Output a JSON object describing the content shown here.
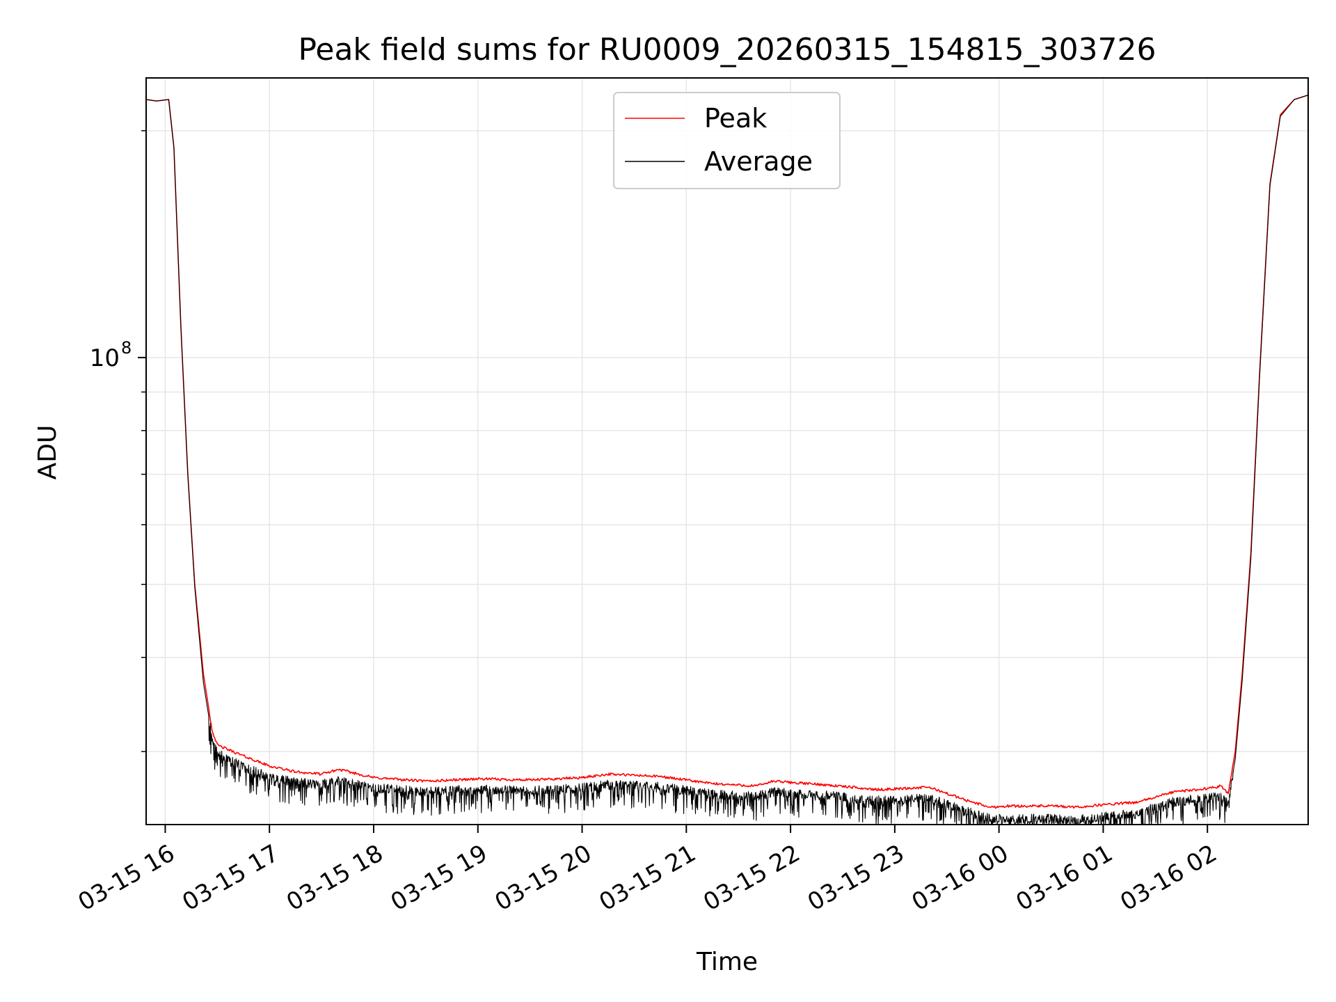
{
  "chart_data": {
    "type": "line",
    "title": "Peak field sums for RU0009_20260315_154815_303726",
    "xlabel": "Time",
    "ylabel": "ADU",
    "y_scale": "log",
    "ylim": [
      24000000,
      235000000
    ],
    "y_major_tick": {
      "value": 100000000,
      "label_base": "10",
      "label_exp": "8"
    },
    "y_minor_ticks": [
      30000000,
      40000000,
      50000000,
      60000000,
      70000000,
      80000000,
      90000000,
      200000000
    ],
    "xlim": [
      "2026-03-15 15:49",
      "2026-03-16 02:58"
    ],
    "x_ticks": [
      {
        "t": "2026-03-15 16:00",
        "label": "03-15 16"
      },
      {
        "t": "2026-03-15 17:00",
        "label": "03-15 17"
      },
      {
        "t": "2026-03-15 18:00",
        "label": "03-15 18"
      },
      {
        "t": "2026-03-15 19:00",
        "label": "03-15 19"
      },
      {
        "t": "2026-03-15 20:00",
        "label": "03-15 20"
      },
      {
        "t": "2026-03-15 21:00",
        "label": "03-15 21"
      },
      {
        "t": "2026-03-15 22:00",
        "label": "03-15 22"
      },
      {
        "t": "2026-03-15 23:00",
        "label": "03-15 23"
      },
      {
        "t": "2026-03-16 00:00",
        "label": "03-16 00"
      },
      {
        "t": "2026-03-16 01:00",
        "label": "03-16 01"
      },
      {
        "t": "2026-03-16 02:00",
        "label": "03-16 02"
      }
    ],
    "grid": true,
    "legend": {
      "placement": "upper center"
    },
    "series": [
      {
        "name": "Peak",
        "color": "#ff0000",
        "points": [
          [
            "2026-03-15 15:49",
            220000000
          ],
          [
            "2026-03-15 15:55",
            219000000
          ],
          [
            "2026-03-15 16:02",
            220000000
          ],
          [
            "2026-03-15 16:05",
            190000000
          ],
          [
            "2026-03-15 16:09",
            110000000
          ],
          [
            "2026-03-15 16:13",
            70000000
          ],
          [
            "2026-03-15 16:17",
            50000000
          ],
          [
            "2026-03-15 16:22",
            38000000
          ],
          [
            "2026-03-15 16:27",
            32000000
          ],
          [
            "2026-03-15 16:30",
            30600000
          ],
          [
            "2026-03-15 16:45",
            29600000
          ],
          [
            "2026-03-15 17:00",
            28700000
          ],
          [
            "2026-03-15 17:15",
            28200000
          ],
          [
            "2026-03-15 17:30",
            28000000
          ],
          [
            "2026-03-15 17:40",
            28400000
          ],
          [
            "2026-03-15 18:00",
            27700000
          ],
          [
            "2026-03-15 18:30",
            27400000
          ],
          [
            "2026-03-15 19:00",
            27600000
          ],
          [
            "2026-03-15 19:30",
            27500000
          ],
          [
            "2026-03-15 20:00",
            27700000
          ],
          [
            "2026-03-15 20:15",
            28000000
          ],
          [
            "2026-03-15 20:45",
            27800000
          ],
          [
            "2026-03-15 21:15",
            27200000
          ],
          [
            "2026-03-15 21:40",
            27000000
          ],
          [
            "2026-03-15 21:50",
            27400000
          ],
          [
            "2026-03-15 22:20",
            27100000
          ],
          [
            "2026-03-15 22:50",
            26700000
          ],
          [
            "2026-03-15 23:20",
            26900000
          ],
          [
            "2026-03-15 23:40",
            25900000
          ],
          [
            "2026-03-15 23:55",
            25300000
          ],
          [
            "2026-03-16 00:05",
            25400000
          ],
          [
            "2026-03-16 00:30",
            25400000
          ],
          [
            "2026-03-16 00:45",
            25300000
          ],
          [
            "2026-03-16 01:00",
            25500000
          ],
          [
            "2026-03-16 01:20",
            25700000
          ],
          [
            "2026-03-16 01:40",
            26500000
          ],
          [
            "2026-03-16 02:00",
            26800000
          ],
          [
            "2026-03-16 02:08",
            27000000
          ],
          [
            "2026-03-16 02:12",
            26400000
          ],
          [
            "2026-03-16 02:16",
            30000000
          ],
          [
            "2026-03-16 02:20",
            38000000
          ],
          [
            "2026-03-16 02:25",
            55000000
          ],
          [
            "2026-03-16 02:30",
            95000000
          ],
          [
            "2026-03-16 02:36",
            170000000
          ],
          [
            "2026-03-16 02:42",
            210000000
          ],
          [
            "2026-03-16 02:50",
            220000000
          ],
          [
            "2026-03-16 02:58",
            223000000
          ]
        ]
      },
      {
        "name": "Average",
        "color": "#000000",
        "points": [
          [
            "2026-03-15 15:49",
            220000000
          ],
          [
            "2026-03-15 15:55",
            219000000
          ],
          [
            "2026-03-15 16:02",
            220000000
          ],
          [
            "2026-03-15 16:05",
            190000000
          ],
          [
            "2026-03-15 16:09",
            110000000
          ],
          [
            "2026-03-15 16:13",
            70000000
          ],
          [
            "2026-03-15 16:17",
            49500000
          ],
          [
            "2026-03-15 16:22",
            37000000
          ],
          [
            "2026-03-15 16:27",
            31300000
          ],
          [
            "2026-03-15 16:30",
            29900000
          ],
          [
            "2026-03-15 16:45",
            28700000
          ],
          [
            "2026-03-15 17:00",
            27800000
          ],
          [
            "2026-03-15 17:15",
            27400000
          ],
          [
            "2026-03-15 17:30",
            27200000
          ],
          [
            "2026-03-15 17:40",
            27500000
          ],
          [
            "2026-03-15 18:00",
            26900000
          ],
          [
            "2026-03-15 18:30",
            26600000
          ],
          [
            "2026-03-15 19:00",
            26800000
          ],
          [
            "2026-03-15 19:30",
            26700000
          ],
          [
            "2026-03-15 20:00",
            26900000
          ],
          [
            "2026-03-15 20:15",
            27200000
          ],
          [
            "2026-03-15 20:45",
            27000000
          ],
          [
            "2026-03-15 21:15",
            26400000
          ],
          [
            "2026-03-15 21:40",
            26200000
          ],
          [
            "2026-03-15 21:50",
            26600000
          ],
          [
            "2026-03-15 22:20",
            26300000
          ],
          [
            "2026-03-15 22:50",
            25900000
          ],
          [
            "2026-03-15 23:20",
            26100000
          ],
          [
            "2026-03-15 23:40",
            25100000
          ],
          [
            "2026-03-15 23:55",
            24500000
          ],
          [
            "2026-03-16 00:05",
            24500000
          ],
          [
            "2026-03-16 00:30",
            24500000
          ],
          [
            "2026-03-16 00:45",
            24400000
          ],
          [
            "2026-03-16 01:00",
            24700000
          ],
          [
            "2026-03-16 01:20",
            24900000
          ],
          [
            "2026-03-16 01:40",
            25800000
          ],
          [
            "2026-03-16 02:00",
            26100000
          ],
          [
            "2026-03-16 02:08",
            26300000
          ],
          [
            "2026-03-16 02:12",
            25700000
          ],
          [
            "2026-03-16 02:16",
            29300000
          ],
          [
            "2026-03-16 02:20",
            37200000
          ],
          [
            "2026-03-16 02:25",
            54000000
          ],
          [
            "2026-03-16 02:30",
            94000000
          ],
          [
            "2026-03-16 02:36",
            169000000
          ],
          [
            "2026-03-16 02:42",
            209000000
          ],
          [
            "2026-03-16 02:50",
            220000000
          ],
          [
            "2026-03-16 02:58",
            223000000
          ]
        ]
      }
    ]
  }
}
